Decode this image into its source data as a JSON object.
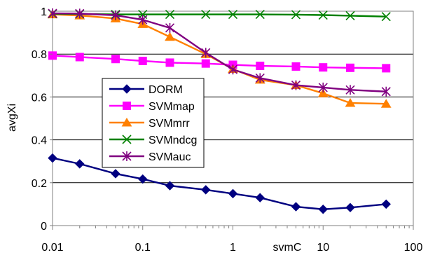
{
  "chart_data": {
    "type": "line",
    "xlabel": "svmC",
    "ylabel": "avgXi",
    "x_scale": "log",
    "xlim": [
      0.01,
      100
    ],
    "ylim": [
      0,
      1
    ],
    "grid": "horizontal",
    "legend_position": "left-center",
    "x_ticks": [
      "0.01",
      "0.1",
      "1",
      "10",
      "100"
    ],
    "y_ticks": [
      "0",
      "0.2",
      "0.4",
      "0.6",
      "0.8",
      "1"
    ],
    "x": [
      0.01,
      0.02,
      0.05,
      0.1,
      0.2,
      0.5,
      1,
      2,
      5,
      10,
      20,
      50
    ],
    "series": [
      {
        "name": "DORM",
        "color": "#000080",
        "marker": "diamond",
        "values": [
          0.315,
          0.288,
          0.242,
          0.217,
          0.186,
          0.167,
          0.149,
          0.13,
          0.088,
          0.076,
          0.084,
          0.1
        ]
      },
      {
        "name": "SVMmap",
        "color": "#FF00FF",
        "marker": "square",
        "values": [
          0.793,
          0.786,
          0.777,
          0.768,
          0.76,
          0.756,
          0.75,
          0.745,
          0.742,
          0.738,
          0.736,
          0.734
        ]
      },
      {
        "name": "SVMmrr",
        "color": "#FF8000",
        "marker": "triangle",
        "values": [
          0.985,
          0.98,
          0.966,
          0.94,
          0.88,
          0.8,
          0.73,
          0.68,
          0.655,
          0.617,
          0.572,
          0.568
        ]
      },
      {
        "name": "SVMndcg",
        "color": "#008000",
        "marker": "x",
        "values": [
          0.988,
          0.987,
          0.985,
          0.985,
          0.985,
          0.985,
          0.985,
          0.985,
          0.984,
          0.982,
          0.979,
          0.975
        ]
      },
      {
        "name": "SVMauc",
        "color": "#800080",
        "marker": "star",
        "values": [
          0.99,
          0.989,
          0.981,
          0.96,
          0.922,
          0.806,
          0.728,
          0.688,
          0.655,
          0.644,
          0.633,
          0.625
        ]
      }
    ]
  }
}
